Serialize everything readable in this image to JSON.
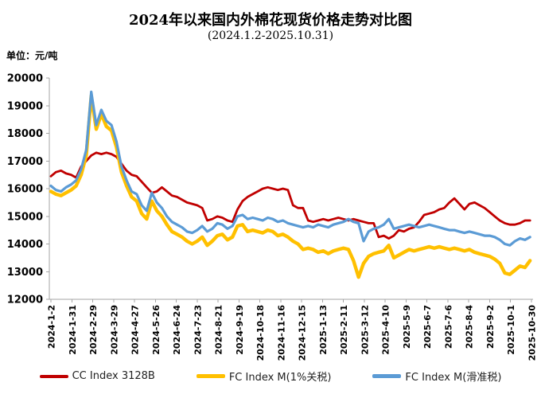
{
  "title": "2024年以来国内外棉花现货价格走势对比图",
  "subtitle": "(2024.1.2-2025.10.31)",
  "unit_label": "单位：元/吨",
  "chart_data": {
    "type": "line",
    "title": "2024年以来国内外棉花现货价格走势对比图",
    "subtitle": "(2024.1.2-2025.10.31)",
    "ylabel": "元/吨",
    "ylim": [
      12000,
      20000
    ],
    "y_ticks": [
      12000,
      13000,
      14000,
      15000,
      16000,
      17000,
      18000,
      19000,
      20000
    ],
    "grid": false,
    "legend_position": "bottom",
    "axis_color": "#A6A6A6",
    "x_start": "2024-1-2",
    "x_end": "2025-10-30",
    "x_total_days": 667,
    "x_label_interval_days": 29,
    "sample_step_days": 7,
    "x_labels": [
      "2024-1-2",
      "2024-1-31",
      "2024-2-29",
      "2024-3-29",
      "2024-4-27",
      "2024-5-26",
      "2024-6-24",
      "2024-7-23",
      "2024-8-21",
      "2024-9-19",
      "2024-10-18",
      "2024-11-16",
      "2024-12-15",
      "2025-1-13",
      "2025-2-11",
      "2025-3-12",
      "2025-4-10",
      "2025-5-9",
      "2025-6-7",
      "2025-7-6",
      "2025-8-4",
      "2025-9-2",
      "2025-10-1",
      "2025-10-30"
    ],
    "series": [
      {
        "name": "CC Index 3128B",
        "color": "#C00000",
        "width": 2.8,
        "values": [
          16450,
          16600,
          16650,
          16550,
          16500,
          16400,
          16800,
          17000,
          17200,
          17300,
          17250,
          17300,
          17250,
          17150,
          16900,
          16650,
          16500,
          16450,
          16250,
          16050,
          15850,
          15900,
          16050,
          15900,
          15750,
          15700,
          15600,
          15500,
          15450,
          15400,
          15300,
          14850,
          14900,
          15000,
          14950,
          14850,
          14800,
          15250,
          15550,
          15700,
          15800,
          15900,
          16000,
          16050,
          16000,
          15950,
          16000,
          15950,
          15400,
          15300,
          15300,
          14850,
          14800,
          14850,
          14900,
          14850,
          14900,
          14950,
          14900,
          14850,
          14900,
          14850,
          14800,
          14750,
          14750,
          14250,
          14300,
          14200,
          14300,
          14500,
          14450,
          14550,
          14600,
          14800,
          15050,
          15100,
          15150,
          15250,
          15300,
          15500,
          15650,
          15450,
          15250,
          15450,
          15500,
          15400,
          15300,
          15150,
          15000,
          14850,
          14750,
          14700,
          14700,
          14750,
          14850,
          14850
        ]
      },
      {
        "name": "FC Index M(1%关税)",
        "color": "#FFC000",
        "width": 4.4,
        "values": [
          15900,
          15800,
          15750,
          15850,
          15950,
          16100,
          16500,
          17200,
          19350,
          18150,
          18700,
          18250,
          18100,
          17500,
          16600,
          16100,
          15700,
          15550,
          15100,
          14900,
          15550,
          15200,
          15000,
          14700,
          14450,
          14350,
          14250,
          14100,
          14000,
          14100,
          14250,
          13950,
          14100,
          14300,
          14350,
          14150,
          14250,
          14650,
          14700,
          14450,
          14500,
          14450,
          14400,
          14500,
          14450,
          14300,
          14350,
          14250,
          14100,
          14000,
          13800,
          13850,
          13800,
          13700,
          13750,
          13650,
          13750,
          13800,
          13850,
          13800,
          13400,
          12800,
          13300,
          13550,
          13650,
          13700,
          13750,
          13950,
          13500,
          13600,
          13700,
          13800,
          13750,
          13800,
          13850,
          13900,
          13850,
          13900,
          13850,
          13800,
          13850,
          13800,
          13750,
          13800,
          13700,
          13650,
          13600,
          13550,
          13450,
          13300,
          12950,
          12900,
          13050,
          13200,
          13150,
          13400
        ]
      },
      {
        "name": "FC Index M(滑准税)",
        "color": "#5B9BD5",
        "width": 3.2,
        "values": [
          16100,
          15950,
          15900,
          16050,
          16150,
          16300,
          16700,
          17400,
          19500,
          18300,
          18850,
          18450,
          18300,
          17700,
          16800,
          16300,
          15900,
          15800,
          15400,
          15200,
          15850,
          15500,
          15300,
          15000,
          14800,
          14700,
          14600,
          14450,
          14400,
          14500,
          14650,
          14450,
          14550,
          14750,
          14700,
          14550,
          14650,
          15000,
          15050,
          14900,
          14950,
          14900,
          14850,
          14950,
          14900,
          14800,
          14850,
          14750,
          14700,
          14650,
          14600,
          14650,
          14600,
          14700,
          14650,
          14600,
          14700,
          14750,
          14800,
          14900,
          14800,
          14750,
          14100,
          14450,
          14550,
          14600,
          14700,
          14900,
          14550,
          14600,
          14650,
          14700,
          14650,
          14600,
          14650,
          14700,
          14650,
          14600,
          14550,
          14500,
          14500,
          14450,
          14400,
          14450,
          14400,
          14350,
          14300,
          14300,
          14250,
          14150,
          14000,
          13950,
          14100,
          14200,
          14150,
          14250
        ]
      }
    ]
  }
}
